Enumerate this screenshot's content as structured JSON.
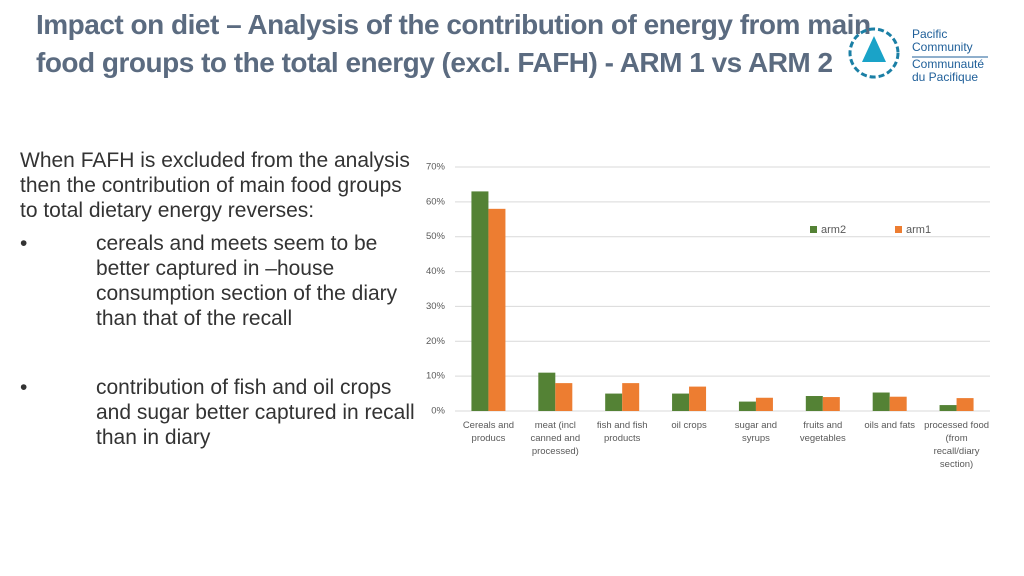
{
  "slide": {
    "title": "Impact on diet – Analysis of the contribution of energy from main food groups to the total energy (excl. FAFH) - ARM 1 vs ARM 2",
    "logo": [
      "Pacific",
      "Community",
      "Communauté",
      "du Pacifique"
    ],
    "intro": "When FAFH is excluded from the analysis then the contribution of main food groups to total dietary energy reverses:",
    "bullets": [
      "cereals and meets seem to be better captured in –house consumption section of the diary than that of the recall",
      "contribution of fish and oil crops and sugar better captured in recall than in diary"
    ]
  },
  "chart_data": {
    "type": "bar",
    "categories": [
      "Cereals and producs",
      "meat (incl canned and processed)",
      "fish and fish products",
      "oil crops",
      "sugar and syrups",
      "fruits and vegetables",
      "oils and fats",
      "processed food (from recall/diary section)"
    ],
    "series": [
      {
        "name": "arm2",
        "color": "#548235",
        "values": [
          63,
          11,
          5,
          5,
          2.7,
          4.3,
          5.3,
          1.7
        ]
      },
      {
        "name": "arm1",
        "color": "#ed7d31",
        "values": [
          58,
          8,
          8,
          7,
          3.8,
          4,
          4.1,
          3.7
        ]
      }
    ],
    "ylim": [
      0,
      70
    ],
    "yticks": [
      {
        "value": 0,
        "label": "0%"
      },
      {
        "value": 10,
        "label": "10%"
      },
      {
        "value": 20,
        "label": "20%"
      },
      {
        "value": 30,
        "label": "30%"
      },
      {
        "value": 40,
        "label": "40%"
      },
      {
        "value": 50,
        "label": "50%"
      },
      {
        "value": 60,
        "label": "60%"
      },
      {
        "value": 70,
        "label": "70%"
      }
    ],
    "grid": true,
    "legend": "top-right"
  }
}
